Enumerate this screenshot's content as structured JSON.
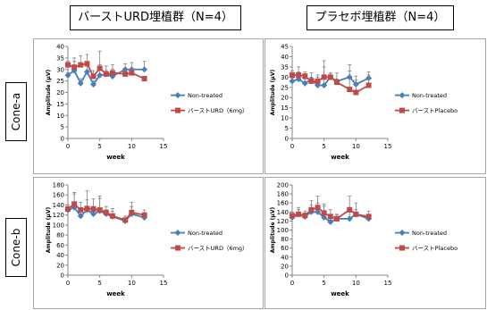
{
  "headers": {
    "left": "バーストURD埋植群（N=4）",
    "right": "プラセボ埋植群（N=4）"
  },
  "rows": {
    "a": "Cone-a",
    "b": "Cone-b"
  },
  "colors": {
    "non_treated": "#4a7ebb",
    "treated": "#be4b48",
    "error_bar": "#808080"
  },
  "chart_data": [
    {
      "type": "line",
      "xlabel": "week",
      "ylabel": "Amplitude (μV)",
      "xlim": [
        0,
        15
      ],
      "ylim": [
        0,
        40
      ],
      "xticks": [
        0,
        5,
        10,
        15
      ],
      "yticks": [
        0,
        5,
        10,
        15,
        20,
        25,
        30,
        35,
        40
      ],
      "x": [
        0,
        1,
        2,
        3,
        4,
        5,
        6,
        7,
        9,
        10,
        12
      ],
      "series": [
        {
          "name": "Non-treated",
          "marker": "diamond",
          "values": [
            27.5,
            29.5,
            24,
            29,
            23.5,
            27.5,
            28,
            27,
            30,
            30,
            30
          ],
          "errors": [
            1,
            4,
            2,
            3,
            1.5,
            4.5,
            3.5,
            3,
            2.5,
            3,
            3.5
          ]
        },
        {
          "name": "バーストURD（6mg）",
          "marker": "square",
          "values": [
            32,
            31,
            32,
            32.5,
            27,
            30.5,
            28,
            28.5,
            28,
            28.5,
            26
          ],
          "errors": [
            1.5,
            4,
            4,
            4,
            2.5,
            7.5,
            1.5,
            3.5,
            2,
            2,
            1
          ]
        }
      ]
    },
    {
      "type": "line",
      "xlabel": "week",
      "ylabel": "Amplitude (μV)",
      "xlim": [
        0,
        15
      ],
      "ylim": [
        0,
        45
      ],
      "xticks": [
        0,
        5,
        10,
        15
      ],
      "yticks": [
        0,
        5,
        10,
        15,
        20,
        25,
        30,
        35,
        40,
        45
      ],
      "x": [
        0,
        1,
        2,
        3,
        4,
        5,
        6,
        7,
        9,
        10,
        12
      ],
      "series": [
        {
          "name": "Non-treated",
          "marker": "diamond",
          "values": [
            28,
            29,
            27,
            29,
            26,
            26,
            30,
            28,
            30,
            26.5,
            29.5
          ],
          "errors": [
            1.5,
            6,
            2,
            3,
            5,
            12,
            2,
            4,
            6,
            2,
            3
          ]
        },
        {
          "name": "バーストPlacebo",
          "marker": "square",
          "values": [
            31,
            31,
            30.5,
            28,
            28,
            30,
            30,
            27.5,
            24,
            22.5,
            26
          ],
          "errors": [
            2,
            1.5,
            2,
            1.5,
            2,
            5,
            2,
            1.5,
            9,
            8,
            5
          ]
        }
      ]
    },
    {
      "type": "line",
      "xlabel": "week",
      "ylabel": "Amplitude (μV)",
      "xlim": [
        0,
        15
      ],
      "ylim": [
        0,
        180
      ],
      "xticks": [
        0,
        5,
        10,
        15
      ],
      "yticks": [
        0,
        20,
        40,
        60,
        80,
        100,
        120,
        140,
        160,
        180
      ],
      "x": [
        0,
        1,
        2,
        3,
        4,
        5,
        6,
        7,
        9,
        10,
        12
      ],
      "series": [
        {
          "name": "Non-treated",
          "marker": "diamond",
          "values": [
            130,
            135,
            118,
            130,
            122,
            128,
            122,
            117,
            108,
            122,
            115
          ],
          "errors": [
            5,
            30,
            10,
            20,
            15,
            25,
            8,
            10,
            5,
            15,
            8
          ]
        },
        {
          "name": "バーストURD（6mg）",
          "marker": "square",
          "values": [
            132,
            142,
            130,
            133,
            132,
            130,
            125,
            118,
            110,
            125,
            120
          ],
          "errors": [
            8,
            20,
            15,
            35,
            20,
            28,
            12,
            15,
            8,
            20,
            10
          ]
        }
      ]
    },
    {
      "type": "line",
      "xlabel": "week",
      "ylabel": "Amplitude (μV)",
      "xlim": [
        0,
        15
      ],
      "ylim": [
        0,
        200
      ],
      "xticks": [
        0,
        5,
        10,
        15
      ],
      "yticks": [
        0,
        20,
        40,
        60,
        80,
        100,
        120,
        140,
        160,
        180,
        200
      ],
      "x": [
        0,
        1,
        2,
        3,
        4,
        5,
        6,
        7,
        9,
        10,
        12
      ],
      "series": [
        {
          "name": "Non-treated",
          "marker": "diamond",
          "values": [
            128,
            135,
            130,
            140,
            140,
            128,
            118,
            125,
            125,
            135,
            125
          ],
          "errors": [
            5,
            10,
            8,
            15,
            20,
            25,
            10,
            8,
            15,
            10,
            10
          ]
        },
        {
          "name": "バーストPlacebo",
          "marker": "square",
          "values": [
            132,
            135,
            132,
            145,
            150,
            138,
            130,
            125,
            145,
            135,
            130
          ],
          "errors": [
            8,
            15,
            10,
            20,
            25,
            20,
            15,
            10,
            30,
            25,
            12
          ]
        }
      ]
    }
  ]
}
